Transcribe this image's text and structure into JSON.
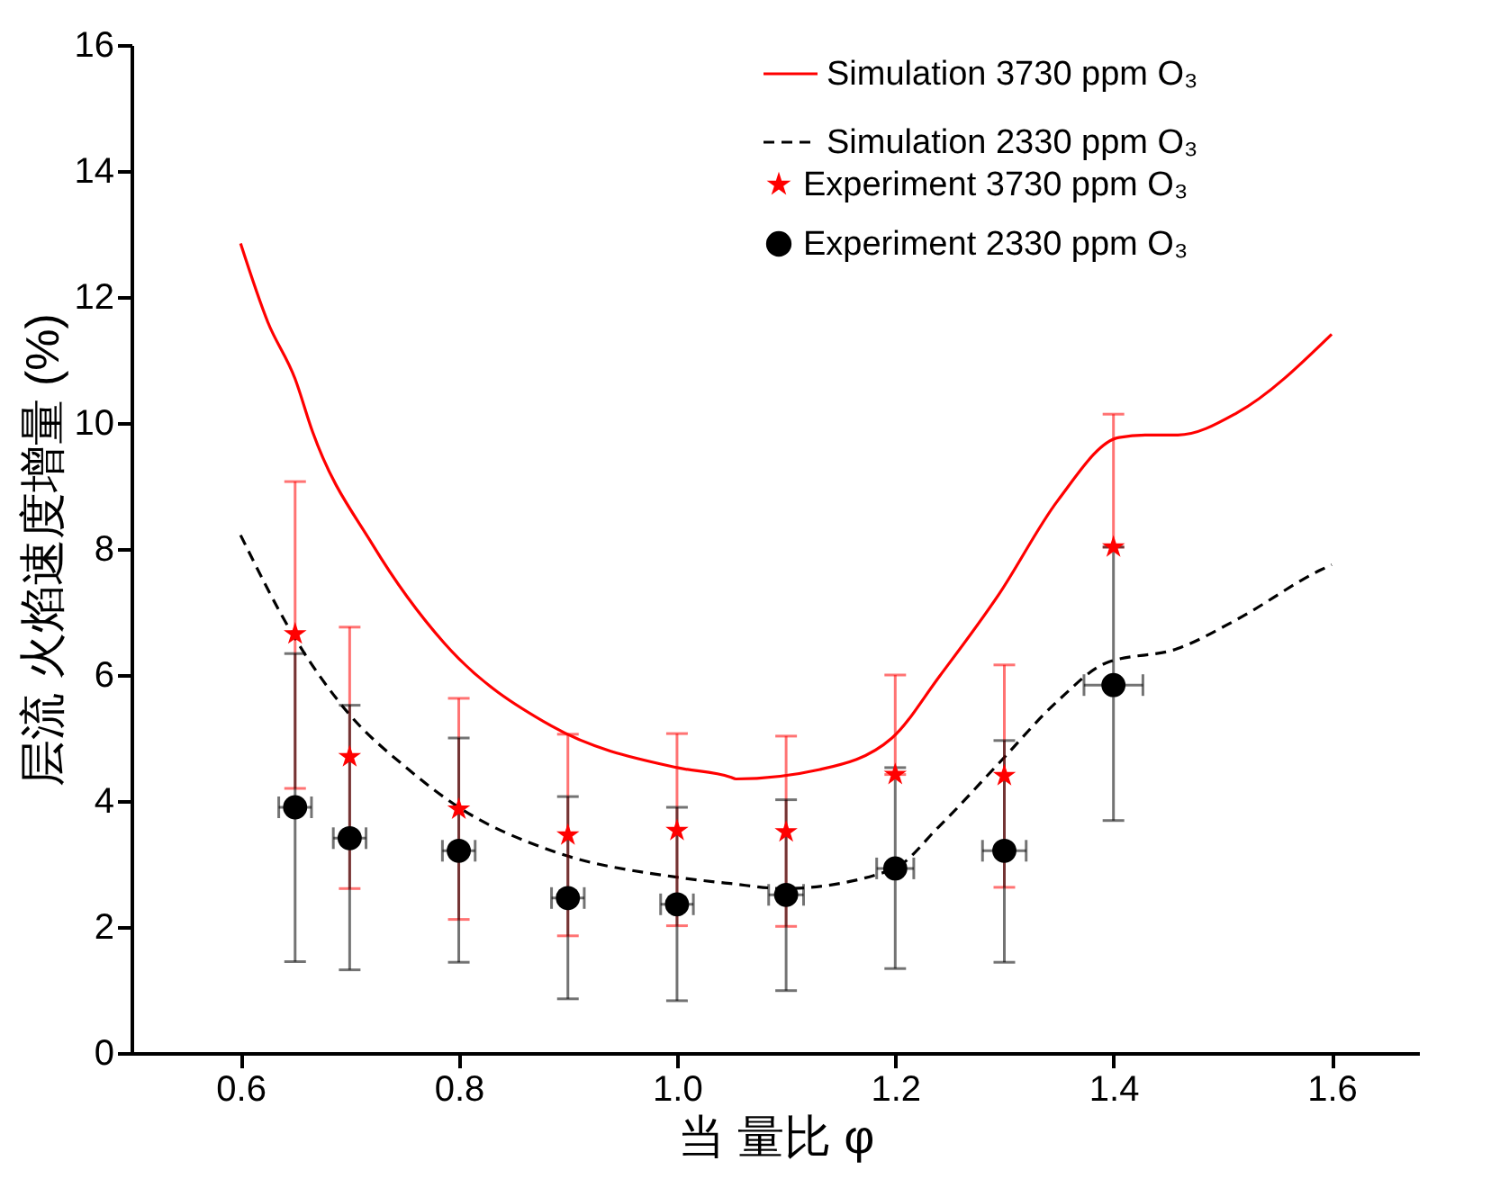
{
  "chart_data": {
    "type": "line",
    "xlabel": "当 量比 φ",
    "ylabel": "层流 火焰速度增量 (%)",
    "xlim": [
      0.5,
      1.68
    ],
    "xticks": [
      0.6,
      0.8,
      {
        "value": 1,
        "label": "1.0"
      },
      1.2,
      1.4,
      1.6
    ],
    "ylim": [
      0,
      16
    ],
    "yticks": [
      0,
      2,
      4,
      6,
      8,
      10,
      12,
      14,
      16
    ],
    "grid": false,
    "legend": "top right",
    "series": [
      {
        "name": "Simulation 3730 ppm O₃",
        "color": "#ff0000",
        "line_style": "solid",
        "marker": "none",
        "x": [
          0.6,
          0.625,
          0.65,
          0.666,
          0.721,
          0.787,
          0.885,
          1.0,
          1.049,
          1.054,
          1.131,
          1.197,
          1.241,
          1.295,
          1.349,
          1.405,
          1.431,
          1.459,
          1.513,
          1.6
        ],
        "values": [
          12.85,
          11.6,
          10.7,
          9.86,
          8.07,
          6.5,
          5.19,
          4.53,
          4.38,
          4.35,
          4.5,
          5.0,
          5.99,
          7.28,
          8.77,
          9.77,
          9.81,
          9.81,
          10.16,
          11.41
        ]
      },
      {
        "name": "Simulation 2330 ppm O₃",
        "color": "#000000",
        "line_style": "dashed",
        "marker": "none",
        "x": [
          0.6,
          0.65,
          0.699,
          0.754,
          0.8,
          0.885,
          1.0,
          1.049,
          1.098,
          1.197,
          1.241,
          1.295,
          1.349,
          1.393,
          1.459,
          1.513,
          1.589,
          1.6
        ],
        "values": [
          8.22,
          6.58,
          5.39,
          4.5,
          3.9,
          3.21,
          2.79,
          2.69,
          2.61,
          2.91,
          3.61,
          4.6,
          5.59,
          6.19,
          6.42,
          6.88,
          7.66,
          7.75
        ]
      },
      {
        "name": "Experiment 3730 ppm O₃",
        "type": "scatter",
        "color": "#ff0000",
        "marker": "star",
        "x": [
          0.65,
          0.7,
          0.8,
          0.9,
          1.0,
          1.1,
          1.2,
          1.3,
          1.4
        ],
        "values": [
          6.65,
          4.7,
          3.87,
          3.46,
          3.53,
          3.51,
          4.42,
          4.4,
          8.03
        ],
        "errors": [
          [
            4.2,
            9.07
          ],
          [
            2.61,
            6.76
          ],
          [
            2.12,
            5.63
          ],
          [
            1.86,
            5.06
          ],
          [
            2.02,
            5.07
          ],
          [
            2.01,
            5.03
          ],
          [
            4.42,
            6.0
          ],
          [
            2.63,
            6.16
          ],
          [
            8.03,
            10.14
          ]
        ]
      },
      {
        "name": "Experiment 2330 ppm O₃",
        "type": "scatter",
        "color": "#000000",
        "marker": "circle",
        "x": [
          0.65,
          0.7,
          0.8,
          0.9,
          1.0,
          1.1,
          1.2,
          1.3,
          1.4
        ],
        "values": [
          3.9,
          3.41,
          3.21,
          2.46,
          2.36,
          2.51,
          2.93,
          3.21,
          5.84
        ],
        "errors": [
          [
            1.45,
            6.34
          ],
          [
            1.32,
            5.52
          ],
          [
            1.44,
            5.0
          ],
          [
            0.86,
            4.07
          ],
          [
            0.83,
            3.9
          ],
          [
            0.99,
            4.02
          ],
          [
            1.34,
            4.53
          ],
          [
            1.44,
            4.96
          ],
          [
            3.69,
            8.03
          ]
        ],
        "xerrors": [
          0.015,
          0.015,
          0.015,
          0.015,
          0.015,
          0.016,
          0.017,
          0.02,
          0.027
        ]
      }
    ]
  }
}
